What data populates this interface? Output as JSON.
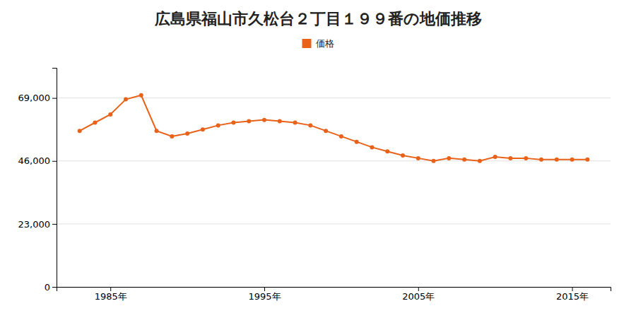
{
  "chart_data": {
    "type": "line",
    "title": "広島県福山市久松台２丁目１９９番の地価推移",
    "x": [
      1983,
      1984,
      1985,
      1986,
      1987,
      1988,
      1989,
      1990,
      1991,
      1992,
      1993,
      1994,
      1995,
      1996,
      1997,
      1998,
      1999,
      2000,
      2001,
      2002,
      2003,
      2004,
      2005,
      2006,
      2007,
      2008,
      2009,
      2010,
      2011,
      2012,
      2013,
      2014,
      2015,
      2016
    ],
    "series": [
      {
        "name": "価格",
        "color": "#e8621a",
        "marker": "circle",
        "values": [
          57000,
          60000,
          63000,
          68500,
          70000,
          57000,
          55000,
          56000,
          57500,
          59000,
          60000,
          60500,
          61000,
          60500,
          60000,
          59000,
          57000,
          55000,
          53000,
          51000,
          49500,
          48000,
          47000,
          46000,
          47000,
          46500,
          46000,
          47500,
          47000,
          47000,
          46500,
          46500,
          46500,
          46500
        ]
      }
    ],
    "xlim": [
      1981.5,
      2017.5
    ],
    "xticks": [
      {
        "value": 1985,
        "label": "1985年"
      },
      {
        "value": 1995,
        "label": "1995年"
      },
      {
        "value": 2005,
        "label": "2005年"
      },
      {
        "value": 2015,
        "label": "2015年"
      }
    ],
    "ylim": [
      0,
      80000
    ],
    "yticks": [
      0,
      {
        "value": 23000,
        "label": "23,000"
      },
      {
        "value": 46000,
        "label": "46,000"
      },
      {
        "value": 69000,
        "label": "69,000"
      }
    ],
    "grid": "y",
    "legend": "top"
  }
}
